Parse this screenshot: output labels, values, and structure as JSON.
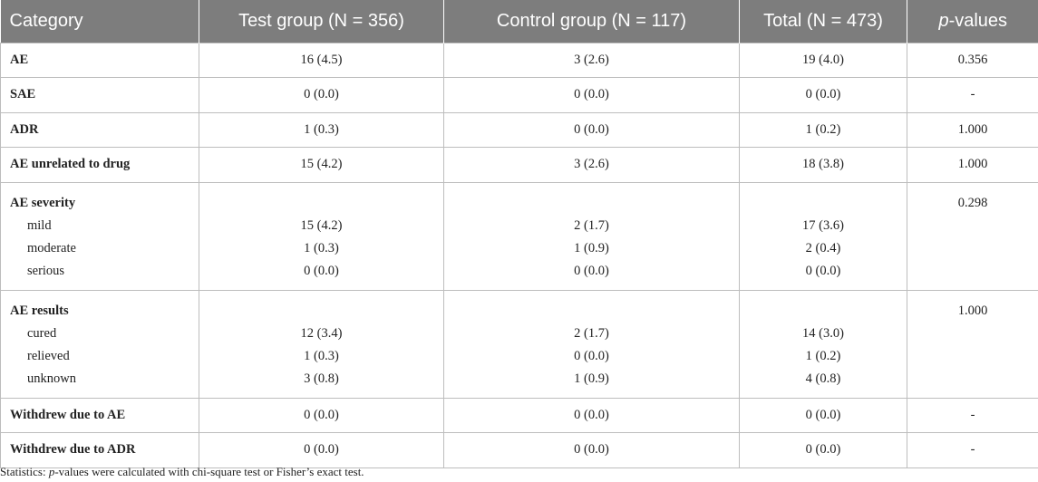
{
  "table": {
    "headers": {
      "category": "Category",
      "test": "Test group (N = 356)",
      "control": "Control group (N = 117)",
      "total": "Total (N = 473)",
      "p_italic": "p",
      "p_rest": "-values"
    },
    "rows": [
      {
        "category": "AE",
        "test": "16 (4.5)",
        "control": "3 (2.6)",
        "total": "19 (4.0)",
        "p": "0.356"
      },
      {
        "category": "SAE",
        "test": "0 (0.0)",
        "control": "0 (0.0)",
        "total": "0 (0.0)",
        "p": "-"
      },
      {
        "category": "ADR",
        "test": "1 (0.3)",
        "control": "0 (0.0)",
        "total": "1 (0.2)",
        "p": "1.000"
      },
      {
        "category": "AE unrelated to drug",
        "test": "15 (4.2)",
        "control": "3 (2.6)",
        "total": "18 (3.8)",
        "p": "1.000"
      }
    ],
    "severity": {
      "category": "AE severity",
      "p": "0.298",
      "items": [
        {
          "label": "mild",
          "test": "15 (4.2)",
          "control": "2 (1.7)",
          "total": "17 (3.6)"
        },
        {
          "label": "moderate",
          "test": "1 (0.3)",
          "control": "1 (0.9)",
          "total": "2 (0.4)"
        },
        {
          "label": "serious",
          "test": "0 (0.0)",
          "control": "0 (0.0)",
          "total": "0 (0.0)"
        }
      ]
    },
    "results": {
      "category": "AE results",
      "p": "1.000",
      "items": [
        {
          "label": "cured",
          "test": "12 (3.4)",
          "control": "2 (1.7)",
          "total": "14 (3.0)"
        },
        {
          "label": "relieved",
          "test": "1 (0.3)",
          "control": "0 (0.0)",
          "total": "1 (0.2)"
        },
        {
          "label": "unknown",
          "test": "3 (0.8)",
          "control": "1 (0.9)",
          "total": "4 (0.8)"
        }
      ]
    },
    "tail_rows": [
      {
        "category": "Withdrew due to AE",
        "test": "0 (0.0)",
        "control": "0 (0.0)",
        "total": "0 (0.0)",
        "p": "-"
      },
      {
        "category": "Withdrew due to ADR",
        "test": "0 (0.0)",
        "control": "0 (0.0)",
        "total": "0 (0.0)",
        "p": "-"
      }
    ]
  },
  "footnote": {
    "prefix": "Statistics: ",
    "p_italic": "p",
    "rest": "-values were calculated with chi-square test or Fisher’s exact test."
  }
}
